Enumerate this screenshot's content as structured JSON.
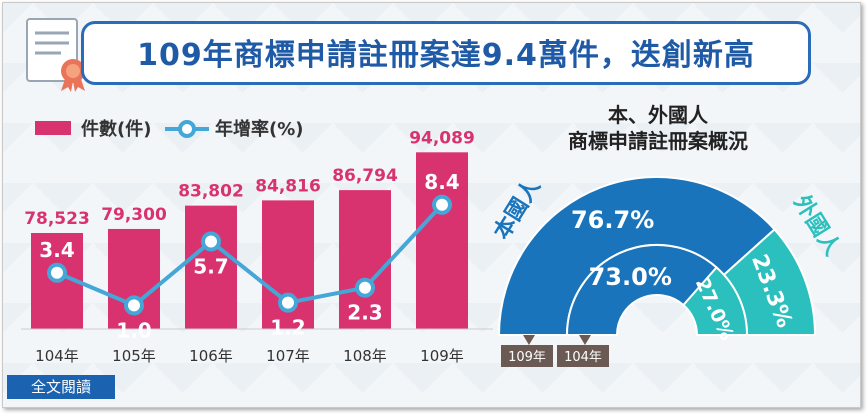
{
  "title": "109年商標申請註冊案達9.4萬件，迭創新高",
  "fulltext_button": "全文閱讀",
  "colors": {
    "bar": "#d8336f",
    "line": "#45a6d8",
    "domestic": "#1a74bb",
    "foreign": "#2bc0be",
    "tag": "#6b5a54",
    "title_blue": "#1f5aa6"
  },
  "chart_data": [
    {
      "type": "bar",
      "categories": [
        "104年",
        "105年",
        "106年",
        "107年",
        "108年",
        "109年"
      ],
      "series": [
        {
          "name": "件數(件)",
          "type": "bar",
          "values": [
            78523,
            79300,
            83802,
            84816,
            86794,
            94089
          ],
          "labels": [
            "78,523",
            "79,300",
            "83,802",
            "84,816",
            "86,794",
            "94,089"
          ]
        },
        {
          "name": "年增率(%)",
          "type": "line",
          "values": [
            3.4,
            1.0,
            5.7,
            1.2,
            2.3,
            8.4
          ],
          "labels": [
            "3.4",
            "1.0",
            "5.7",
            "1.2",
            "2.3",
            "8.4"
          ]
        }
      ],
      "legend": "top-left"
    },
    {
      "type": "pie",
      "title_lines": [
        "本、外國人",
        "商標申請註冊案概況"
      ],
      "categories": [
        "本國人",
        "外國人"
      ],
      "rings": [
        {
          "name": "109年",
          "values": [
            76.7,
            23.3
          ],
          "labels": [
            "76.7%",
            "23.3%"
          ]
        },
        {
          "name": "104年",
          "values": [
            73.0,
            27.0
          ],
          "labels": [
            "73.0%",
            "27.0%"
          ]
        }
      ]
    }
  ]
}
